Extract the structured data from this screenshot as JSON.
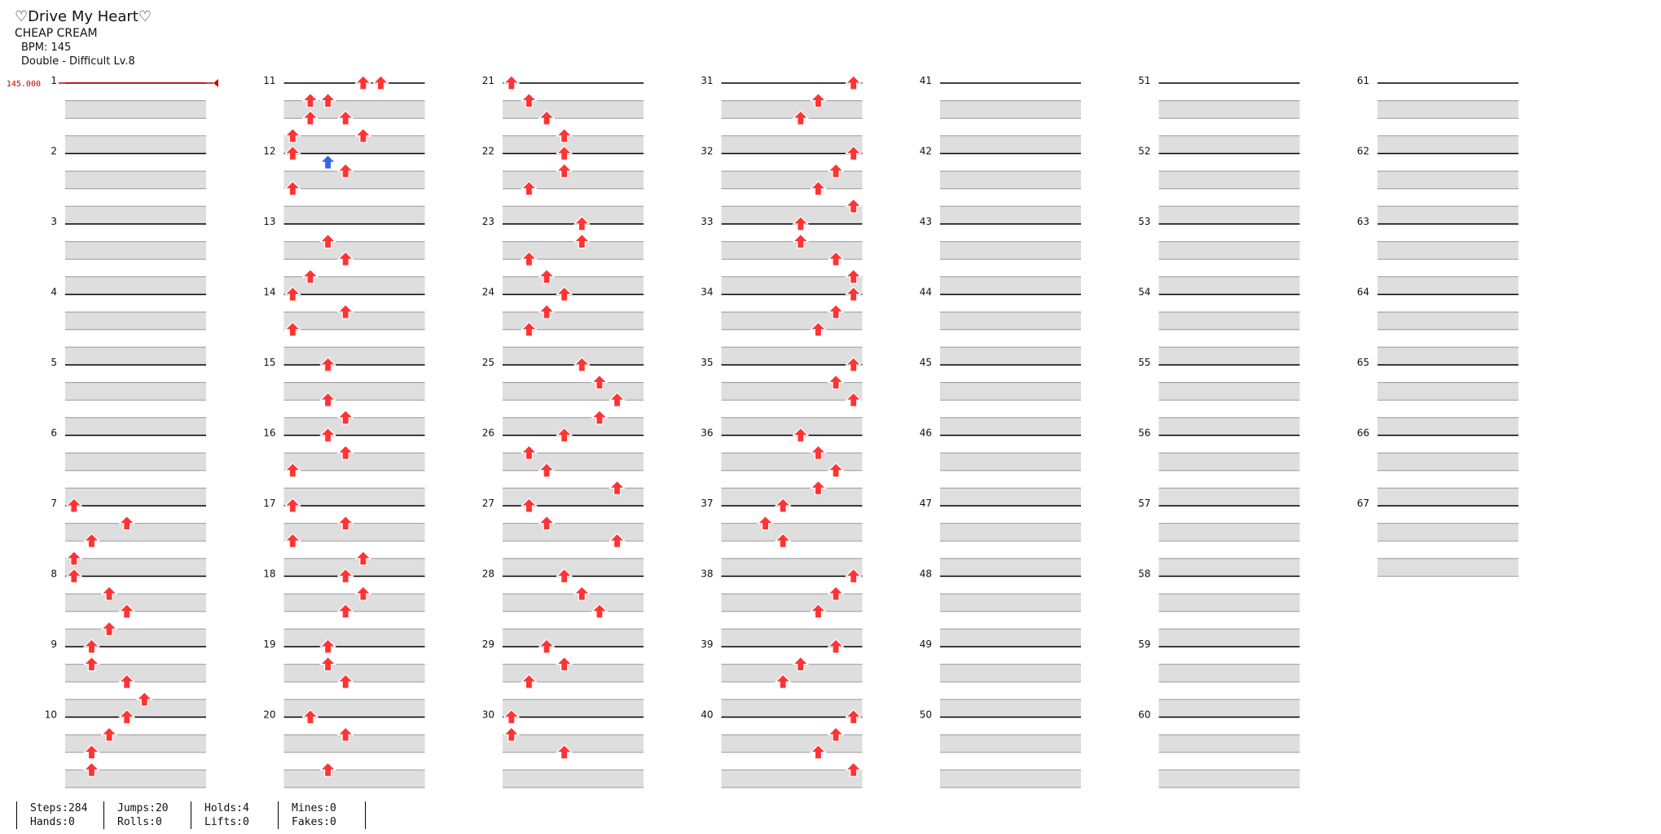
{
  "song": {
    "title": "♡Drive My Heart♡",
    "artist": "CHEAP CREAM",
    "bpm_label": "BPM: 145",
    "difficulty": "Double - Difficult Lv.8"
  },
  "chart_data": {
    "type": "table",
    "bpm_marker_label": "145.000",
    "lanes": 8,
    "measures_per_column": 10,
    "measure_numbers": [
      1,
      2,
      3,
      4,
      5,
      6,
      7,
      8,
      9,
      10,
      11,
      12,
      13,
      14,
      15,
      16,
      17,
      18,
      19,
      20,
      21,
      22,
      23,
      24,
      25,
      26,
      27,
      28,
      29,
      30,
      31,
      32,
      33,
      34,
      35,
      36,
      37,
      38,
      39,
      40,
      41,
      42,
      43,
      44,
      45,
      46,
      47,
      48,
      49,
      50,
      51,
      52,
      53,
      54,
      55,
      56,
      57,
      58,
      59,
      60,
      61,
      62,
      63,
      64,
      65,
      66,
      67
    ],
    "total_measures": 67,
    "colors": {
      "quarter": "#ff3333",
      "eighth": "#3366ee",
      "hold": "#66cc55",
      "stripe": "#dedede",
      "bpm": "#cc0000"
    },
    "notes": [
      [
        6,
        0,
        0
      ],
      [
        6,
        2,
        3
      ],
      [
        6,
        4,
        1
      ],
      [
        6,
        6,
        0
      ],
      [
        7,
        0,
        0
      ],
      [
        7,
        2,
        2
      ],
      [
        7,
        4,
        3
      ],
      [
        7,
        6,
        2
      ],
      [
        8,
        0,
        1
      ],
      [
        8,
        2,
        1
      ],
      [
        8,
        4,
        3
      ],
      [
        8,
        6,
        4
      ],
      [
        9,
        0,
        3
      ],
      [
        9,
        2,
        2
      ],
      [
        9,
        4,
        1
      ],
      [
        9,
        6,
        1
      ],
      [
        10,
        0,
        4
      ],
      [
        10,
        2,
        1
      ],
      [
        10,
        4,
        1
      ],
      [
        10,
        6,
        0
      ],
      [
        10,
        0,
        5
      ],
      [
        10,
        2,
        2
      ],
      [
        10,
        4,
        3
      ],
      [
        10,
        6,
        4
      ],
      [
        11,
        0,
        0
      ],
      [
        11,
        1,
        2
      ],
      [
        11,
        2,
        3
      ],
      [
        11,
        4,
        0
      ],
      [
        12,
        2,
        2
      ],
      [
        12,
        4,
        3
      ],
      [
        12,
        6,
        1
      ],
      [
        13,
        0,
        0
      ],
      [
        13,
        2,
        3
      ],
      [
        13,
        4,
        0
      ],
      [
        14,
        0,
        2
      ],
      [
        14,
        4,
        2
      ],
      [
        14,
        6,
        3
      ],
      [
        15,
        0,
        2
      ],
      [
        15,
        2,
        3
      ],
      [
        15,
        4,
        0
      ],
      [
        16,
        0,
        0
      ],
      [
        16,
        2,
        3
      ],
      [
        16,
        4,
        0
      ],
      [
        16,
        6,
        4
      ],
      [
        17,
        0,
        3
      ],
      [
        17,
        2,
        4
      ],
      [
        17,
        4,
        3
      ],
      [
        18,
        0,
        2
      ],
      [
        18,
        2,
        2
      ],
      [
        18,
        4,
        3
      ],
      [
        19,
        0,
        1
      ],
      [
        19,
        2,
        3
      ],
      [
        19,
        6,
        2
      ],
      [
        20,
        0,
        0
      ],
      [
        20,
        2,
        1
      ],
      [
        20,
        4,
        2
      ],
      [
        20,
        6,
        3
      ],
      [
        21,
        0,
        3
      ],
      [
        21,
        2,
        3
      ],
      [
        21,
        4,
        1
      ],
      [
        22,
        0,
        4
      ],
      [
        22,
        2,
        4
      ],
      [
        22,
        4,
        1
      ],
      [
        22,
        6,
        2
      ],
      [
        23,
        0,
        3
      ],
      [
        23,
        2,
        2
      ],
      [
        23,
        4,
        1
      ],
      [
        24,
        0,
        4
      ],
      [
        24,
        2,
        5
      ],
      [
        24,
        4,
        6
      ],
      [
        24,
        6,
        5
      ],
      [
        25,
        0,
        3
      ],
      [
        25,
        2,
        1
      ],
      [
        25,
        4,
        2
      ],
      [
        25,
        6,
        6
      ],
      [
        26,
        0,
        1
      ],
      [
        26,
        2,
        2
      ],
      [
        26,
        4,
        6
      ],
      [
        27,
        0,
        3
      ],
      [
        27,
        2,
        4
      ],
      [
        27,
        4,
        5
      ],
      [
        28,
        0,
        2
      ],
      [
        28,
        2,
        3
      ],
      [
        28,
        4,
        1
      ],
      [
        29,
        0,
        0
      ],
      [
        29,
        2,
        0
      ],
      [
        29,
        4,
        3
      ],
      [
        30,
        0,
        7
      ],
      [
        30,
        2,
        5
      ],
      [
        30,
        4,
        4
      ],
      [
        31,
        0,
        7
      ],
      [
        31,
        2,
        6
      ],
      [
        31,
        4,
        5
      ],
      [
        31,
        6,
        7
      ],
      [
        32,
        0,
        4
      ],
      [
        32,
        2,
        4
      ],
      [
        32,
        4,
        6
      ],
      [
        32,
        6,
        7
      ],
      [
        33,
        0,
        7
      ],
      [
        33,
        2,
        6
      ],
      [
        33,
        4,
        5
      ],
      [
        34,
        0,
        7
      ],
      [
        34,
        2,
        6
      ],
      [
        34,
        4,
        7
      ],
      [
        35,
        0,
        4
      ],
      [
        35,
        2,
        5
      ],
      [
        35,
        4,
        6
      ],
      [
        35,
        6,
        5
      ],
      [
        36,
        0,
        3
      ],
      [
        36,
        2,
        2
      ],
      [
        36,
        4,
        3
      ],
      [
        37,
        0,
        7
      ],
      [
        37,
        2,
        6
      ],
      [
        37,
        4,
        5
      ],
      [
        38,
        0,
        6
      ],
      [
        38,
        2,
        4
      ],
      [
        38,
        4,
        3
      ],
      [
        39,
        0,
        7
      ],
      [
        39,
        2,
        6
      ],
      [
        39,
        4,
        5
      ],
      [
        39,
        6,
        7
      ]
    ]
  },
  "stats": [
    {
      "line1": "Steps:284",
      "line2": "Hands:0"
    },
    {
      "line1": "Jumps:20",
      "line2": "Rolls:0"
    },
    {
      "line1": "Holds:4",
      "line2": "Lifts:0"
    },
    {
      "line1": "Mines:0",
      "line2": "Fakes:0"
    }
  ]
}
